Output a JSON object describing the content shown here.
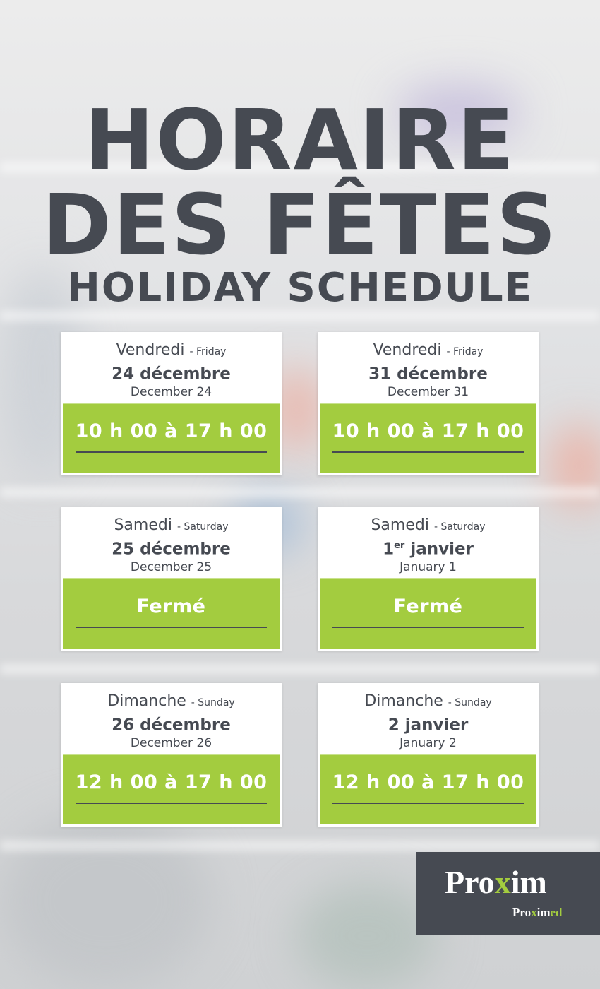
{
  "title": {
    "line1": "HORAIRE",
    "line2": "DES FÊTES",
    "line3": "HOLIDAY SCHEDULE"
  },
  "colors": {
    "accent": "#a3cc3f",
    "text": "#464a52"
  },
  "cards": [
    {
      "day_fr": "Vendredi",
      "day_en": "- Friday",
      "date_fr": "24 décembre",
      "date_sup": "",
      "date_fr_rest": "",
      "date_en": "December 24",
      "hours": "10 h 00 à 17 h 00"
    },
    {
      "day_fr": "Vendredi",
      "day_en": "- Friday",
      "date_fr": "31 décembre",
      "date_sup": "",
      "date_fr_rest": "",
      "date_en": "December 31",
      "hours": "10 h 00 à 17 h 00"
    },
    {
      "day_fr": "Samedi",
      "day_en": "- Saturday",
      "date_fr": "25 décembre",
      "date_sup": "",
      "date_fr_rest": "",
      "date_en": "December 25",
      "hours": "Fermé"
    },
    {
      "day_fr": "Samedi",
      "day_en": "- Saturday",
      "date_fr": "1",
      "date_sup": "er",
      "date_fr_rest": " janvier",
      "date_en": "January 1",
      "hours": "Fermé"
    },
    {
      "day_fr": "Dimanche",
      "day_en": "- Sunday",
      "date_fr": "26 décembre",
      "date_sup": "",
      "date_fr_rest": "",
      "date_en": "December 26",
      "hours": "12 h 00 à 17 h 00"
    },
    {
      "day_fr": "Dimanche",
      "day_en": "- Sunday",
      "date_fr": "2 janvier",
      "date_sup": "",
      "date_fr_rest": "",
      "date_en": "January 2",
      "hours": "12 h 00 à 17 h 00"
    }
  ],
  "logo": {
    "brand_a": "Pro",
    "brand_x": "x",
    "brand_b": "im",
    "sub_a": "Pro",
    "sub_x": "x",
    "sub_b": "im",
    "sub_c": "ed"
  }
}
